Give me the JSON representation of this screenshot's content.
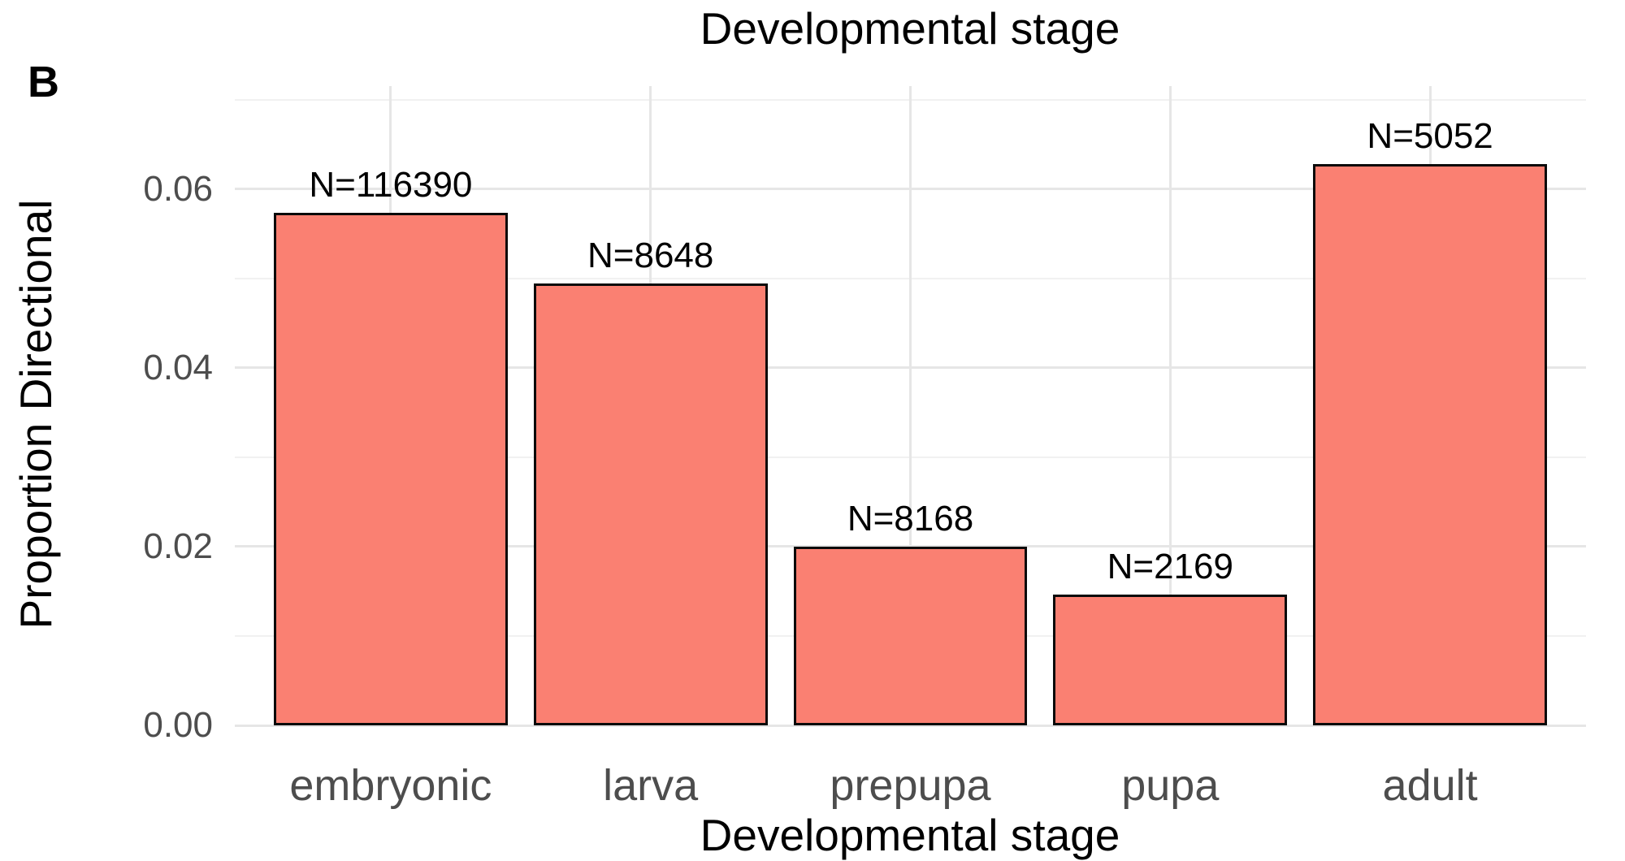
{
  "figure": {
    "panel_label": "B",
    "title": "Developmental stage",
    "x_axis": {
      "label": "Developmental stage",
      "tick_labels": [
        "embryonic",
        "larva",
        "prepupa",
        "pupa",
        "adult"
      ]
    },
    "y_axis": {
      "label": "Proportion Directional",
      "tick_labels": [
        "0.00",
        "0.02",
        "0.04",
        "0.06"
      ]
    }
  },
  "chart_data": {
    "type": "bar",
    "title": "Developmental stage",
    "xlabel": "Developmental stage",
    "ylabel": "Proportion Directional",
    "categories": [
      "embryonic",
      "larva",
      "prepupa",
      "pupa",
      "adult"
    ],
    "values": [
      0.0573,
      0.0494,
      0.02,
      0.0146,
      0.0628
    ],
    "bar_labels": [
      "N=116390",
      "N=8648",
      "N=8168",
      "N=2169",
      "N=5052"
    ],
    "counts": [
      116390,
      8648,
      8168,
      2169,
      5052
    ],
    "ylim": [
      0,
      0.0715
    ],
    "ytick_values": [
      0,
      0.02,
      0.04,
      0.06
    ],
    "ytick_minor_values": [
      0.01,
      0.03,
      0.05,
      0.07
    ],
    "grid": "major-and-minor",
    "legend": "none",
    "colors": {
      "bar_fill": "#fa8072",
      "bar_stroke": "#0a0a0a",
      "grid_major": "#e6e6e6",
      "grid_minor": "#f1f1f1",
      "axis_text": "#4d4d4d",
      "title_text": "#000000",
      "background": "#ffffff"
    }
  }
}
